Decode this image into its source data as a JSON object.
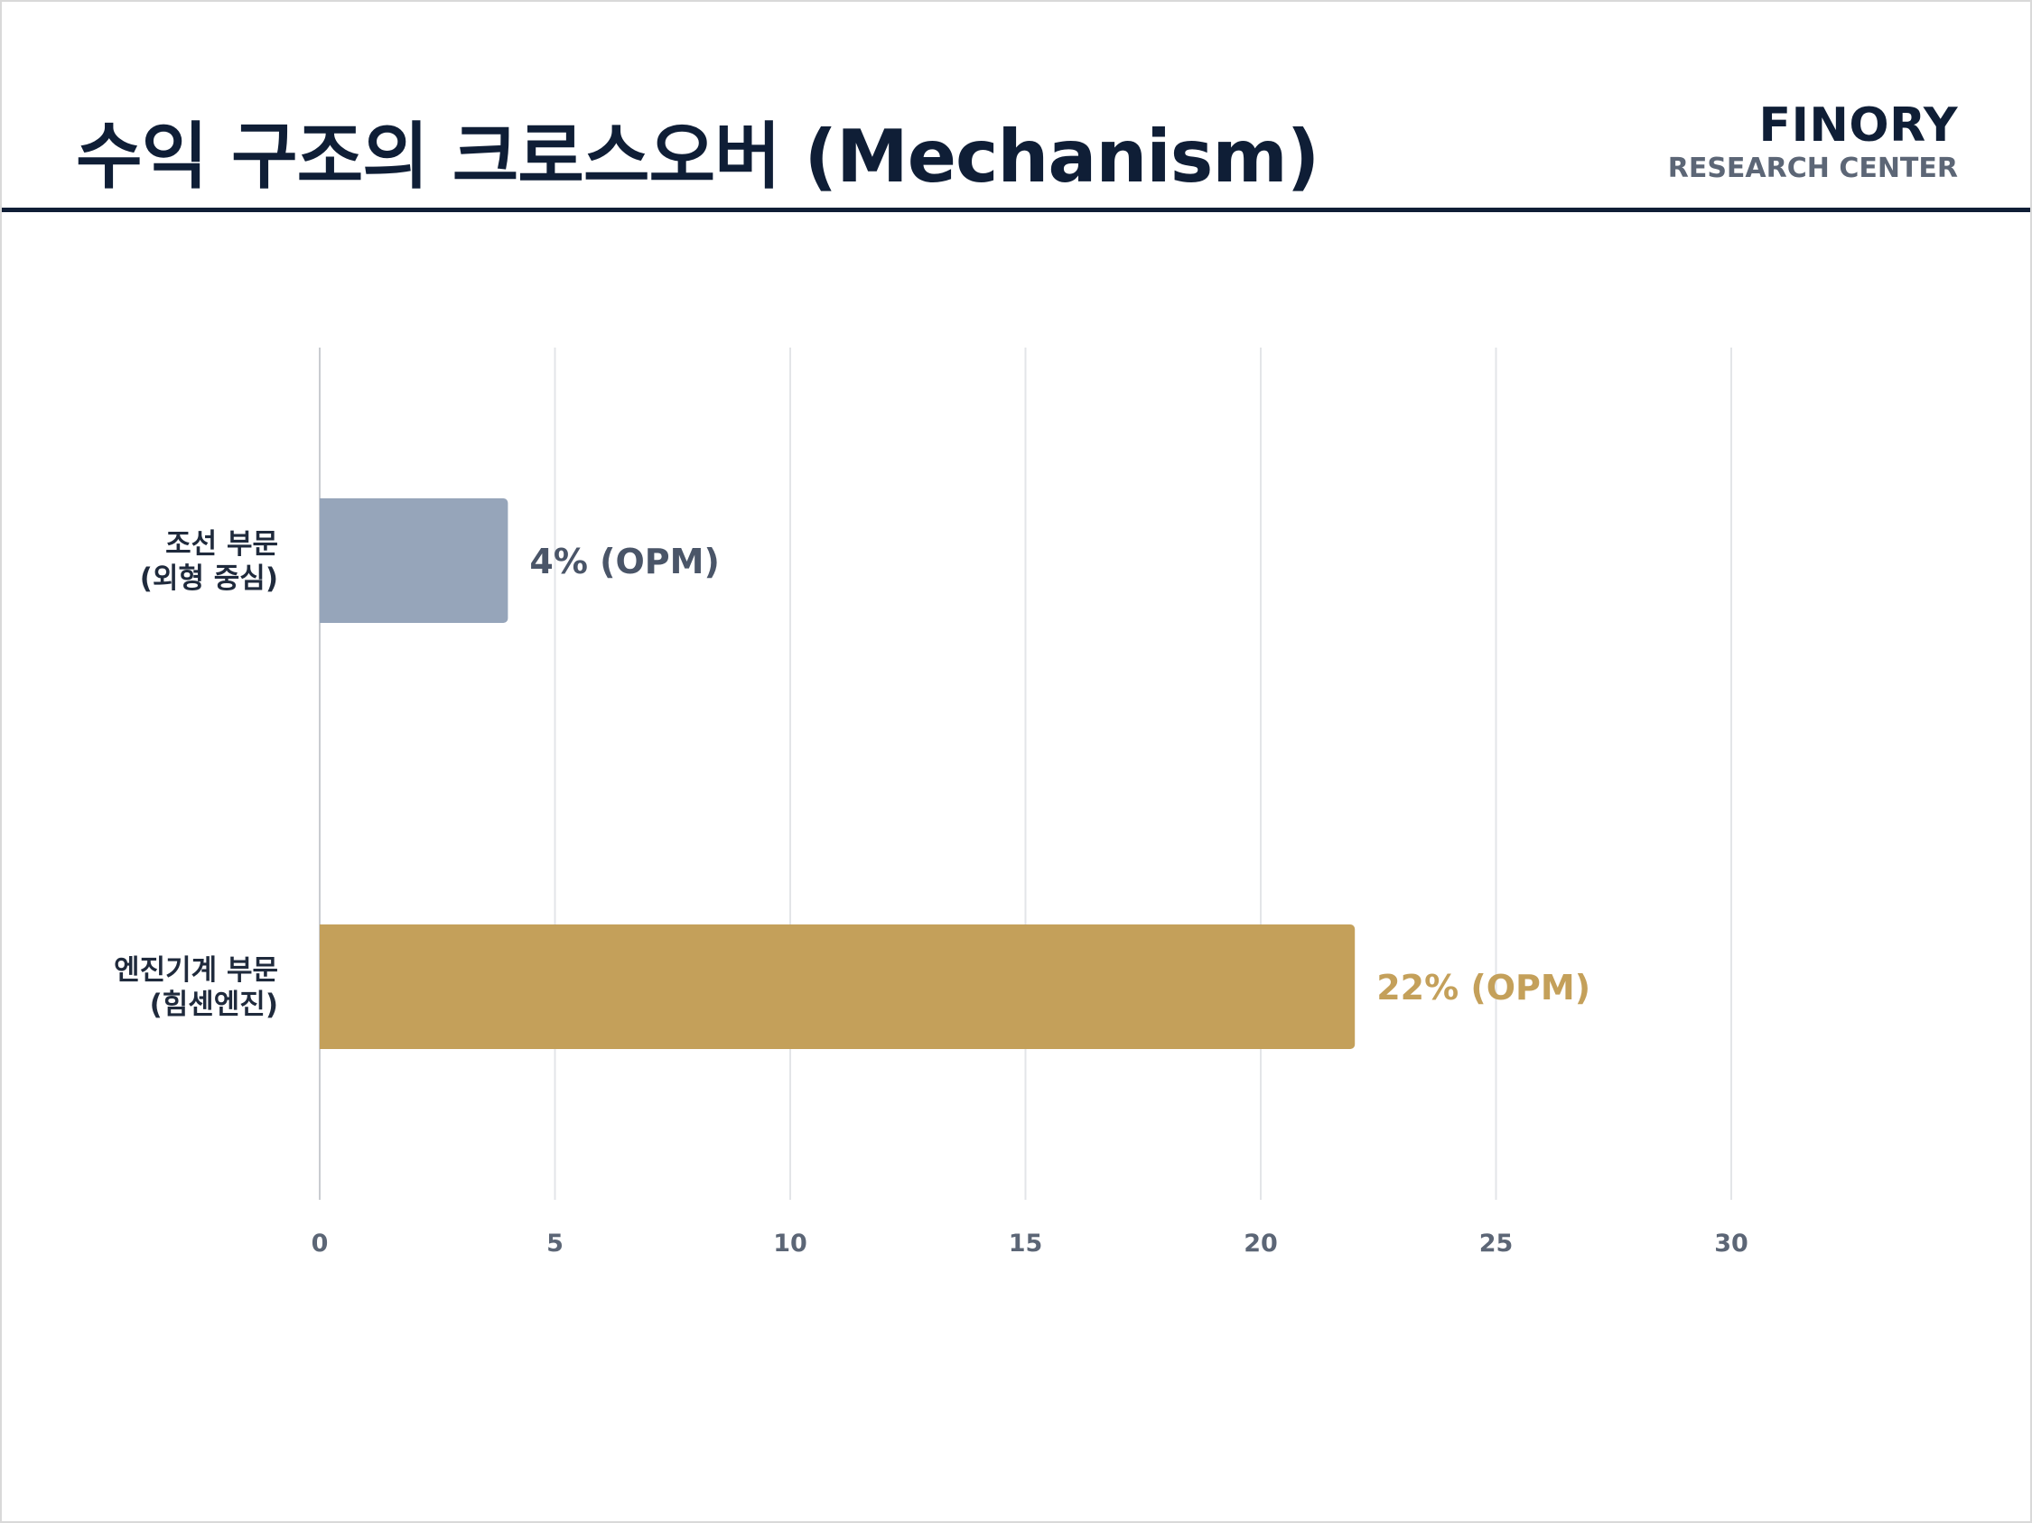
{
  "header": {
    "title": "수익 구조의 크로스오버 (Mechanism)",
    "brand_name": "FINORY",
    "brand_sub": "RESEARCH CENTER"
  },
  "colors": {
    "title": "#0f1e36",
    "grid": "#e3e5e8",
    "axis_label": "#5c6676",
    "category_label": "#1f2a3c"
  },
  "chart_data": {
    "type": "bar",
    "orientation": "horizontal",
    "categories": [
      [
        "조선 부문",
        "(외형 중심)"
      ],
      [
        "엔진기계 부문",
        "(힘센엔진)"
      ]
    ],
    "values": [
      4,
      22
    ],
    "data_labels": [
      "4% (OPM)",
      "22% (OPM)"
    ],
    "bar_colors": [
      "#96a5ba",
      "#c4a05a"
    ],
    "label_colors": [
      "#4a5568",
      "#c4a05a"
    ],
    "x_ticks": [
      0,
      5,
      10,
      15,
      20,
      25,
      30
    ],
    "xlim": [
      0,
      30
    ],
    "grid": true
  }
}
